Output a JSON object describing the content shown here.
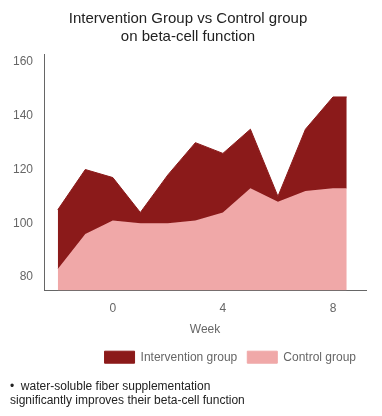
{
  "chart_data": {
    "type": "area",
    "title": "Intervention Group vs Control group",
    "subtitle": "on beta-cell function",
    "x_label": "Week",
    "x": [
      -2,
      -1,
      0,
      1,
      2,
      3,
      4,
      5,
      6,
      7,
      8,
      8.5
    ],
    "series": [
      {
        "name": "Intervention group",
        "color": "#8B1A1A",
        "values": [
          105,
          120,
          117,
          104,
          118,
          130,
          126,
          135,
          110,
          135,
          147,
          147
        ]
      },
      {
        "name": "Control group",
        "color": "#F0A8A8",
        "values": [
          83,
          96,
          101,
          100,
          100,
          101,
          104,
          113,
          108,
          112,
          113,
          113
        ]
      }
    ],
    "xlim": [
      -2.5,
      9.2
    ],
    "xticks": [
      0,
      4,
      8
    ],
    "ylim": [
      75,
      163
    ],
    "yticks": [
      80,
      100,
      120,
      140,
      160
    ],
    "grid": false,
    "legend": "lower right",
    "annotations": [
      "•  water-soluble fiber supplementation",
      "significantly improves their beta-cell function"
    ]
  }
}
